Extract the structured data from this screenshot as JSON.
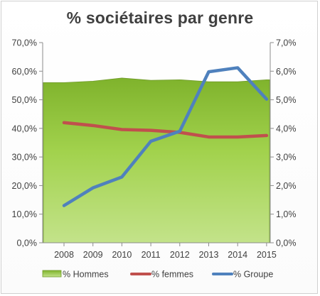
{
  "chart_data": {
    "type": "line",
    "title": "% sociétaires par genre",
    "categories": [
      "2008",
      "2009",
      "2010",
      "2011",
      "2012",
      "2013",
      "2014",
      "2015"
    ],
    "y_left": {
      "range": [
        0,
        70
      ],
      "ticks": [
        "0,0%",
        "10,0%",
        "20,0%",
        "30,0%",
        "40,0%",
        "50,0%",
        "60,0%",
        "70,0%"
      ]
    },
    "y_right": {
      "range": [
        0,
        7
      ],
      "ticks": [
        "0,0%",
        "1,0%",
        "2,0%",
        "3,0%",
        "4,0%",
        "5,0%",
        "6,0%",
        "7,0%"
      ]
    },
    "grid": false,
    "legend_position": "bottom",
    "series": [
      {
        "name": "% Hommes",
        "kind": "area",
        "axis": "left",
        "color": "#92c83e",
        "values": [
          56.0,
          56.5,
          57.6,
          56.8,
          57.0,
          56.3,
          56.3,
          57.0
        ]
      },
      {
        "name": "% femmes",
        "kind": "line",
        "axis": "left",
        "color": "#c0504d",
        "values": [
          42.0,
          41.0,
          39.6,
          39.3,
          38.6,
          37.0,
          37.0,
          37.5
        ]
      },
      {
        "name": "% Groupe",
        "kind": "line",
        "axis": "right",
        "color": "#4f81bd",
        "values": [
          1.3,
          1.92,
          2.3,
          3.55,
          3.9,
          5.98,
          6.12,
          5.02
        ]
      }
    ]
  }
}
